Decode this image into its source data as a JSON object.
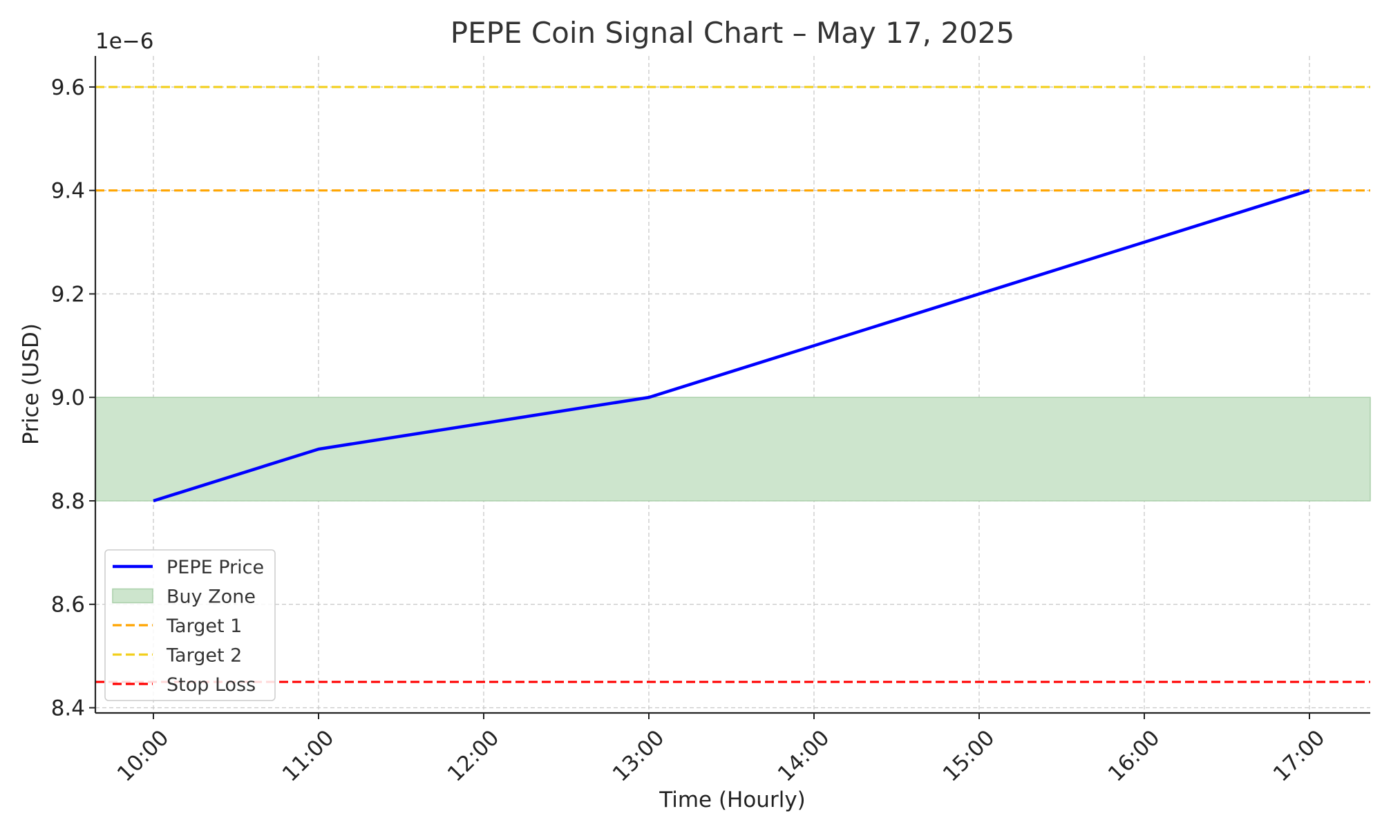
{
  "chart_data": {
    "type": "line",
    "title": "PEPE Coin Signal Chart – May 17, 2025",
    "xlabel": "Time (Hourly)",
    "ylabel": "Price (USD)",
    "y_offset_label": "1e−6",
    "categories": [
      "10:00",
      "11:00",
      "12:00",
      "13:00",
      "14:00",
      "15:00",
      "16:00",
      "17:00"
    ],
    "series": [
      {
        "name": "PEPE Price",
        "color": "#0000ff",
        "x": [
          "10:00",
          "11:00",
          "13:00",
          "17:00"
        ],
        "values": [
          8.8,
          8.9,
          9.0,
          9.4
        ]
      }
    ],
    "buy_zone": {
      "name": "Buy Zone",
      "lower": 8.8,
      "upper": 9.0,
      "color": "#cde5cd"
    },
    "horizontal_lines": [
      {
        "name": "Target 1",
        "value": 9.4,
        "color": "#ffa500"
      },
      {
        "name": "Target 2",
        "value": 9.6,
        "color": "#f2cf1d"
      },
      {
        "name": "Stop Loss",
        "value": 8.45,
        "color": "#ff0000"
      }
    ],
    "yticks": [
      "8.4",
      "8.6",
      "8.8",
      "9.0",
      "9.2",
      "9.4",
      "9.6"
    ],
    "ylim": [
      8.39,
      9.66
    ],
    "grid": true,
    "legend_position": "lower-left"
  }
}
